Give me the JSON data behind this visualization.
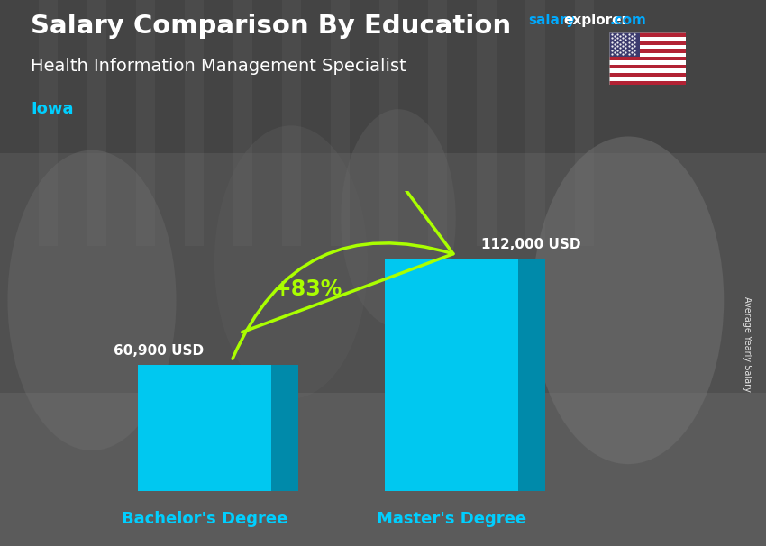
{
  "title": "Salary Comparison By Education",
  "subtitle": "Health Information Management Specialist",
  "location": "Iowa",
  "categories": [
    "Bachelor's Degree",
    "Master's Degree"
  ],
  "values": [
    60900,
    112000
  ],
  "value_labels": [
    "60,900 USD",
    "112,000 USD"
  ],
  "percent_change": "+83%",
  "bar_color_face": "#00C8F0",
  "bar_color_dark": "#0099BB",
  "bar_color_top": "#66DDEE",
  "bar_color_right": "#008AAA",
  "title_color": "#FFFFFF",
  "subtitle_color": "#FFFFFF",
  "location_color": "#00CFFF",
  "salary_label_color": "#FFFFFF",
  "category_label_color": "#00CFFF",
  "percent_color": "#AAFF00",
  "ylabel": "Average Yearly Salary",
  "ylim": [
    0,
    145000
  ],
  "bg_color": "#5a5a5a",
  "header_bg": "#3a3a3a"
}
